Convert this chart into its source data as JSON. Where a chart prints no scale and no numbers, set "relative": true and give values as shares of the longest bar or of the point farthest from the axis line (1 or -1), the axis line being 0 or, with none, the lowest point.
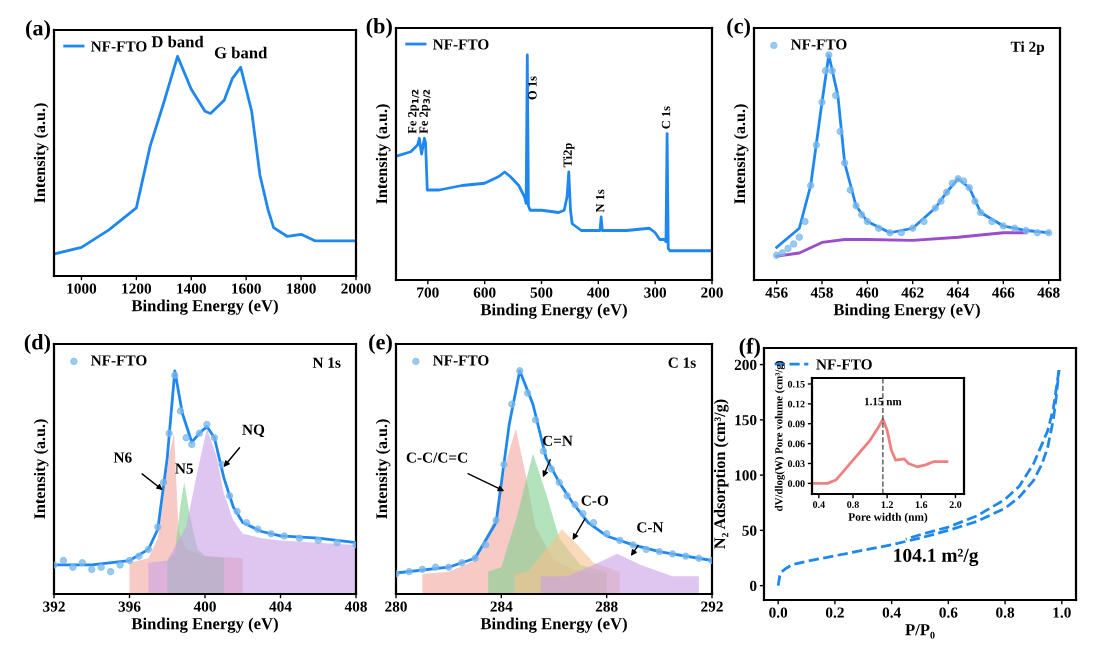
{
  "chart_data": [
    {
      "type": "line",
      "title": "(a)",
      "xlabel": "Binding Energy (eV)",
      "ylabel": "Intensity (a.u.)",
      "relative": true,
      "legend": "top left",
      "xlim": [
        900,
        2000
      ],
      "xticks": [
        1000,
        1200,
        1400,
        1600,
        1800,
        2000
      ],
      "annotations": [
        {
          "text": "D band",
          "x": 1350,
          "y": 1.0
        },
        {
          "text": "G band",
          "x": 1580,
          "y": 0.95
        }
      ],
      "series": [
        {
          "name": "NF-FTO",
          "color": "#1e88f0",
          "x": [
            900,
            1000,
            1100,
            1200,
            1250,
            1300,
            1350,
            1400,
            1450,
            1470,
            1520,
            1550,
            1580,
            1620,
            1650,
            1680,
            1700,
            1750,
            1800,
            1850,
            1900,
            2000
          ],
          "values": [
            0.1,
            0.13,
            0.21,
            0.31,
            0.59,
            0.79,
            1.0,
            0.85,
            0.75,
            0.74,
            0.8,
            0.9,
            0.95,
            0.75,
            0.46,
            0.3,
            0.22,
            0.18,
            0.19,
            0.16,
            0.16,
            0.16
          ]
        }
      ]
    },
    {
      "type": "line",
      "title": "(b)",
      "xlabel": "Binding Energy (eV)",
      "ylabel": "Intensity (a.u.)",
      "relative": true,
      "legend": "top left",
      "xlim": [
        756,
        200
      ],
      "xticks": [
        700,
        600,
        500,
        400,
        300,
        200
      ],
      "annotations": [
        {
          "text": "Fe 2p$_{1/2}$",
          "x": 725,
          "y": 0.65
        },
        {
          "text": "Fe 2p$_{3/2}$",
          "x": 705,
          "y": 0.65
        },
        {
          "text": "O 1s",
          "x": 514,
          "y": 0.8
        },
        {
          "text": "Ti2p",
          "x": 452,
          "y": 0.5
        },
        {
          "text": "N 1s",
          "x": 395,
          "y": 0.3
        },
        {
          "text": "C 1s",
          "x": 279,
          "y": 0.67
        }
      ],
      "series": [
        {
          "name": "NF-FTO",
          "color": "#1e88f0",
          "x": [
            756,
            730,
            718,
            715,
            711,
            706,
            704,
            701,
            680,
            640,
            600,
            575,
            565,
            555,
            540,
            530,
            527,
            525,
            523,
            520,
            500,
            470,
            460,
            455,
            452,
            449,
            446,
            430,
            400,
            397,
            395,
            393,
            390,
            350,
            310,
            300,
            292,
            284,
            281,
            279,
            277,
            274,
            250,
            200
          ],
          "values": [
            0.55,
            0.57,
            0.6,
            0.63,
            0.56,
            0.63,
            0.61,
            0.4,
            0.4,
            0.42,
            0.43,
            0.46,
            0.48,
            0.46,
            0.42,
            0.37,
            0.34,
            1.0,
            0.33,
            0.31,
            0.31,
            0.3,
            0.31,
            0.37,
            0.48,
            0.31,
            0.25,
            0.22,
            0.22,
            0.22,
            0.28,
            0.22,
            0.22,
            0.22,
            0.23,
            0.21,
            0.18,
            0.18,
            0.17,
            0.65,
            0.14,
            0.13,
            0.13,
            0.13
          ]
        }
      ]
    },
    {
      "type": "line",
      "title": "(c)",
      "xlabel": "Binding Energy (eV)",
      "ylabel": "Intensity (a.u.)",
      "relative": true,
      "legend": "top left",
      "xlim": [
        455,
        468.5
      ],
      "xticks": [
        456,
        458,
        460,
        462,
        464,
        466,
        468
      ],
      "annotations": [
        "Ti 2p"
      ],
      "series": [
        {
          "name": "NF-FTO",
          "type": "scatter",
          "color": "#7ab8ec",
          "x": [
            456,
            456.25,
            456.5,
            456.75,
            457,
            457.25,
            457.5,
            457.75,
            458,
            458.15,
            458.3,
            458.45,
            458.6,
            458.8,
            459,
            459.25,
            459.5,
            459.75,
            460,
            460.5,
            461,
            461.5,
            462,
            462.5,
            463,
            463.25,
            463.5,
            463.75,
            464,
            464.25,
            464.5,
            464.75,
            465,
            465.5,
            466,
            466.5,
            467,
            467.5,
            468
          ],
          "values": [
            0.11,
            0.12,
            0.14,
            0.16,
            0.19,
            0.26,
            0.42,
            0.6,
            0.79,
            0.93,
            1.0,
            0.93,
            0.82,
            0.66,
            0.52,
            0.4,
            0.33,
            0.29,
            0.26,
            0.23,
            0.21,
            0.21,
            0.23,
            0.26,
            0.32,
            0.35,
            0.39,
            0.43,
            0.45,
            0.44,
            0.41,
            0.35,
            0.3,
            0.26,
            0.24,
            0.23,
            0.22,
            0.21,
            0.21
          ]
        },
        {
          "type": "line",
          "color": "#1e88f0",
          "x": [
            456,
            457,
            457.5,
            458,
            458.3,
            458.7,
            459,
            459.5,
            460,
            461,
            462,
            463,
            463.5,
            464,
            464.5,
            465,
            466,
            467,
            468
          ],
          "values": [
            0.145,
            0.23,
            0.42,
            0.79,
            1.0,
            0.82,
            0.52,
            0.33,
            0.26,
            0.21,
            0.23,
            0.32,
            0.39,
            0.45,
            0.41,
            0.3,
            0.24,
            0.22,
            0.21
          ]
        },
        {
          "type": "line",
          "color": "#9b4dca",
          "x": [
            456,
            457,
            458,
            459,
            460,
            462,
            464,
            466,
            467
          ],
          "values": [
            0.106,
            0.12,
            0.167,
            0.18,
            0.18,
            0.176,
            0.19,
            0.21,
            0.21
          ]
        }
      ]
    },
    {
      "type": "line",
      "title": "(d)",
      "xlabel": "Binding Energy (eV)",
      "ylabel": "Intensity (a.u.)",
      "relative": true,
      "legend": "top left",
      "xlim": [
        392,
        408
      ],
      "xticks": [
        392,
        396,
        400,
        404,
        408
      ],
      "annotations": [
        "N 1s",
        {
          "text": "N6",
          "x": 398.0,
          "y": 0.45
        },
        {
          "text": "N5",
          "x": 398.9,
          "y": 0.5
        },
        {
          "text": "NQ",
          "x": 400.8,
          "y": 0.55
        }
      ],
      "series": [
        {
          "type": "area",
          "color": "#f4a6a0",
          "x": [
            396,
            397,
            397.5,
            397.9,
            398.1,
            398.36,
            398.6,
            399,
            400,
            402
          ],
          "values": [
            0.14,
            0.16,
            0.25,
            0.5,
            0.62,
            0.72,
            0.28,
            0.2,
            0.17,
            0.16
          ]
        },
        {
          "type": "area",
          "color": "#7fd08f",
          "x": [
            398,
            398.4,
            398.7,
            398.9,
            399.2,
            399.6,
            400,
            401
          ],
          "values": [
            0.15,
            0.18,
            0.4,
            0.5,
            0.35,
            0.2,
            0.17,
            0.16
          ]
        },
        {
          "type": "area",
          "color": "#c9a0e8",
          "x": [
            397,
            398,
            399,
            399.6,
            400.1,
            400.6,
            401,
            401.5,
            402,
            403,
            404,
            406,
            408
          ],
          "values": [
            0.14,
            0.15,
            0.3,
            0.55,
            0.74,
            0.62,
            0.45,
            0.33,
            0.27,
            0.25,
            0.24,
            0.23,
            0.22
          ]
        },
        {
          "name": "NF-FTO",
          "type": "scatter",
          "color": "#7ab8ec",
          "x": [
            392,
            392.5,
            393,
            393.5,
            394,
            394.5,
            395,
            395.5,
            396,
            396.5,
            397,
            397.5,
            397.8,
            398.1,
            398.4,
            398.7,
            399,
            399.3,
            399.7,
            400.1,
            400.5,
            400.9,
            401.3,
            401.7,
            402.2,
            402.8,
            403.5,
            404.2,
            405,
            406,
            407,
            408
          ],
          "values": [
            0.13,
            0.15,
            0.12,
            0.14,
            0.11,
            0.12,
            0.1,
            0.13,
            0.15,
            0.17,
            0.2,
            0.3,
            0.5,
            0.72,
            0.98,
            0.82,
            0.7,
            0.67,
            0.72,
            0.76,
            0.7,
            0.58,
            0.44,
            0.37,
            0.32,
            0.29,
            0.27,
            0.26,
            0.25,
            0.24,
            0.23,
            0.22
          ]
        },
        {
          "type": "line",
          "color": "#1e88f0",
          "x": [
            392,
            394,
            396,
            397,
            397.5,
            398,
            398.4,
            398.8,
            399.3,
            399.7,
            400.1,
            400.5,
            401,
            401.5,
            402,
            403,
            404,
            406,
            408
          ],
          "values": [
            0.13,
            0.13,
            0.15,
            0.2,
            0.29,
            0.61,
            1.0,
            0.81,
            0.68,
            0.72,
            0.75,
            0.7,
            0.52,
            0.39,
            0.32,
            0.28,
            0.26,
            0.25,
            0.23
          ]
        }
      ]
    },
    {
      "type": "line",
      "title": "(e)",
      "xlabel": "Binding Energy (eV)",
      "ylabel": "Intensity (a.u.)",
      "relative": true,
      "legend": "top left",
      "xlim": [
        280,
        292
      ],
      "xticks": [
        280,
        284,
        288,
        292
      ],
      "annotations": [
        "C 1s",
        {
          "text": "C-C/C=C",
          "x": 284.3,
          "y": 0.45
        },
        {
          "text": "C=N",
          "x": 285.5,
          "y": 0.5
        },
        {
          "text": "C-O",
          "x": 286.6,
          "y": 0.22
        },
        {
          "text": "C-N",
          "x": 288.8,
          "y": 0.15
        }
      ],
      "series": [
        {
          "type": "area",
          "color": "#f4a6a0",
          "x": [
            281,
            282,
            283,
            283.8,
            284.2,
            284.55,
            284.9,
            285.3,
            286,
            287,
            288
          ],
          "values": [
            0.09,
            0.1,
            0.15,
            0.35,
            0.6,
            0.74,
            0.55,
            0.3,
            0.15,
            0.1,
            0.09
          ]
        },
        {
          "type": "area",
          "color": "#7fd08f",
          "x": [
            283.5,
            284,
            284.6,
            285.2,
            285.7,
            286.2,
            287,
            288
          ],
          "values": [
            0.1,
            0.12,
            0.35,
            0.63,
            0.45,
            0.25,
            0.13,
            0.1
          ]
        },
        {
          "type": "area",
          "color": "#f7c28c",
          "x": [
            284.5,
            285,
            285.7,
            286.3,
            286.9,
            287.5,
            288.5
          ],
          "values": [
            0.09,
            0.1,
            0.2,
            0.29,
            0.22,
            0.14,
            0.1
          ]
        },
        {
          "type": "area",
          "color": "#c9a0e8",
          "x": [
            285.5,
            286.5,
            287.5,
            288.4,
            289.3,
            290.5,
            291.5
          ],
          "values": [
            0.08,
            0.08,
            0.13,
            0.18,
            0.13,
            0.08,
            0.08
          ]
        },
        {
          "name": "NF-FTO",
          "type": "scatter",
          "color": "#7ab8ec",
          "x": [
            280,
            280.5,
            281,
            281.5,
            282,
            282.5,
            283,
            283.4,
            283.8,
            284.1,
            284.4,
            284.7,
            285,
            285.3,
            285.6,
            285.9,
            286.2,
            286.5,
            286.8,
            287.1,
            287.5,
            288,
            288.5,
            289,
            289.5,
            290,
            290.5,
            291,
            291.5,
            292
          ],
          "values": [
            0.09,
            0.1,
            0.11,
            0.12,
            0.12,
            0.14,
            0.16,
            0.22,
            0.33,
            0.58,
            0.85,
            1.0,
            0.9,
            0.78,
            0.64,
            0.56,
            0.5,
            0.44,
            0.4,
            0.36,
            0.32,
            0.27,
            0.24,
            0.22,
            0.2,
            0.19,
            0.18,
            0.17,
            0.16,
            0.15
          ]
        },
        {
          "type": "line",
          "color": "#1e88f0",
          "x": [
            280,
            282,
            283,
            283.8,
            284.3,
            284.7,
            285.2,
            285.7,
            286.2,
            286.7,
            287.3,
            288,
            289,
            290,
            291,
            292
          ],
          "values": [
            0.094,
            0.12,
            0.16,
            0.32,
            0.76,
            1.0,
            0.85,
            0.61,
            0.5,
            0.41,
            0.32,
            0.26,
            0.22,
            0.19,
            0.17,
            0.15
          ]
        }
      ]
    },
    {
      "type": "line",
      "title": "(f)",
      "xlabel": "P/P₀",
      "ylabel": "N₂ Adsorption (cm³/g)",
      "legend": "top left",
      "line_style": "dashed",
      "xlim": [
        -0.05,
        1.05
      ],
      "xticks": [
        {
          "value": 0,
          "label": "0.0"
        },
        0.2,
        0.4,
        0.6,
        0.8,
        {
          "value": 1,
          "label": "1.0"
        }
      ],
      "ylim": [
        -13,
        215
      ],
      "yticks": [
        0,
        50,
        100,
        150,
        200
      ],
      "annotations": [
        "104.1 m²/g"
      ],
      "series": [
        {
          "name": "NF-FTO",
          "color": "#1e88f0",
          "x": [
            0,
            0.005,
            0.01,
            0.03,
            0.05,
            0.1,
            0.2,
            0.3,
            0.4,
            0.5,
            0.6,
            0.7,
            0.8,
            0.85,
            0.9,
            0.93,
            0.95,
            0.97,
            0.98,
            0.99
          ],
          "values": [
            0,
            8,
            12,
            16,
            19,
            22,
            27,
            32,
            37,
            43,
            50,
            58,
            70,
            80,
            95,
            110,
            125,
            150,
            170,
            195
          ]
        },
        {
          "color": "#1e88f0",
          "x": [
            0.99,
            0.97,
            0.95,
            0.9,
            0.85,
            0.8,
            0.7,
            0.6,
            0.5,
            0.45
          ],
          "values": [
            195,
            160,
            140,
            110,
            90,
            78,
            63,
            53,
            46,
            42
          ]
        }
      ]
    },
    {
      "type": "line",
      "xlabel": "Pore width (nm)",
      "ylabel": "dV/dlog(W) Pore volume (cm³/g)",
      "xlim": [
        0.32,
        2.1
      ],
      "xticks": [
        0.4,
        0.8,
        1.2,
        1.6,
        {
          "value": 2,
          "label": "2.0"
        }
      ],
      "ylim": [
        -0.016,
        0.159
      ],
      "yticks": [
        {
          "value": 0,
          "label": "0.00"
        },
        {
          "value": 0.03,
          "label": "0.03"
        },
        {
          "value": 0.06,
          "label": "0.06"
        },
        {
          "value": 0.09,
          "label": "0.09"
        },
        {
          "value": 0.12,
          "label": "0.12"
        },
        {
          "value": 0.15,
          "label": "0.15"
        }
      ],
      "ref_lines": [
        {
          "axis": "x",
          "value": 1.15,
          "label": "1.15 nm",
          "line_style": "dashed",
          "color": "#555555"
        }
      ],
      "series": [
        {
          "color": "#f08080",
          "x": [
            0.35,
            0.5,
            0.6,
            0.7,
            0.8,
            0.9,
            1.0,
            1.1,
            1.15,
            1.2,
            1.25,
            1.3,
            1.4,
            1.45,
            1.55,
            1.65,
            1.75,
            1.9
          ],
          "values": [
            0.0,
            0.0,
            0.005,
            0.02,
            0.035,
            0.05,
            0.065,
            0.085,
            0.097,
            0.08,
            0.05,
            0.035,
            0.037,
            0.03,
            0.025,
            0.028,
            0.033,
            0.033
          ]
        }
      ]
    }
  ]
}
